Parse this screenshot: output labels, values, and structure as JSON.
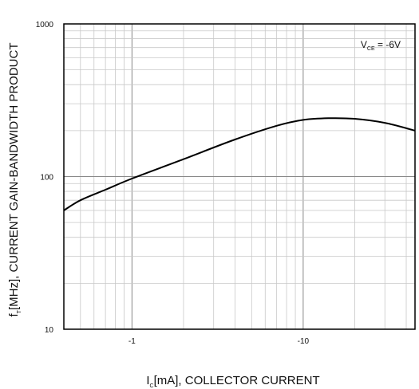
{
  "chart_data": {
    "type": "line",
    "x_scale": "log",
    "y_scale": "log",
    "xlim": [
      -0.4,
      -45
    ],
    "ylim": [
      10,
      1000
    ],
    "x_ticks": [
      {
        "value": -1,
        "label": "-1"
      },
      {
        "value": -10,
        "label": "-10"
      }
    ],
    "y_ticks": [
      {
        "value": 1000,
        "label": "1000"
      },
      {
        "value": 100,
        "label": "100"
      },
      {
        "value": 10,
        "label": "10"
      }
    ],
    "xlabel": {
      "base": "I",
      "sub": "C",
      "rest": "[mA], COLLECTOR CURRENT"
    },
    "ylabel": {
      "base": "f",
      "sub": "T",
      "rest": "[MHz], CURRENT GAIN-BANDWIDTH PRODUCT"
    },
    "annotation": {
      "base": "V",
      "sub": "CE",
      "rest": " = -6V"
    },
    "grid": true,
    "series": [
      {
        "color": "#000000",
        "points": [
          [
            -0.4,
            60
          ],
          [
            -0.5,
            70
          ],
          [
            -0.7,
            82
          ],
          [
            -1.0,
            97
          ],
          [
            -2.0,
            130
          ],
          [
            -4.0,
            175
          ],
          [
            -7.0,
            215
          ],
          [
            -10.0,
            235
          ],
          [
            -14.0,
            241
          ],
          [
            -20.0,
            239
          ],
          [
            -30.0,
            225
          ],
          [
            -45.0,
            200
          ]
        ]
      }
    ]
  }
}
